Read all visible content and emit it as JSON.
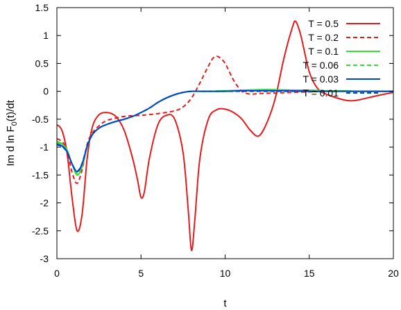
{
  "chart_data": {
    "type": "line",
    "xlabel": "t",
    "ylabel": "Im d ln F",
    "ylabel_sub": "0",
    "ylabel_tail": "(t)/dt",
    "xlim": [
      0,
      20
    ],
    "ylim": [
      -3,
      1.5
    ],
    "xticks": [
      0,
      5,
      10,
      15,
      20
    ],
    "yticks": [
      -3,
      -2.5,
      -2,
      -1.5,
      -1,
      -0.5,
      0,
      0.5,
      1,
      1.5
    ],
    "grid": false,
    "legend_position": "top-right",
    "series": [
      {
        "name": "T = 0.5",
        "color": "#e41a1c",
        "dash": "solid",
        "x": [
          0,
          0.3,
          0.6,
          0.9,
          1.2,
          1.5,
          1.8,
          2.1,
          2.5,
          3.0,
          3.5,
          4.0,
          4.5,
          4.8,
          5.0,
          5.2,
          5.5,
          6.0,
          6.5,
          7.0,
          7.5,
          7.8,
          8.0,
          8.2,
          8.5,
          9.0,
          9.5,
          10.0,
          10.5,
          11.0,
          11.5,
          12.0,
          12.5,
          13.0,
          13.5,
          14.0,
          14.2,
          14.5,
          15.0,
          15.5,
          16.0,
          17.0,
          17.5,
          18.0,
          19.0,
          20.0
        ],
        "y": [
          -0.6,
          -0.7,
          -1.1,
          -1.9,
          -2.5,
          -2.2,
          -1.2,
          -0.65,
          -0.42,
          -0.38,
          -0.45,
          -0.7,
          -1.2,
          -1.6,
          -1.9,
          -1.8,
          -1.2,
          -0.6,
          -0.43,
          -0.5,
          -1.1,
          -2.1,
          -2.85,
          -2.3,
          -1.2,
          -0.5,
          -0.33,
          -0.32,
          -0.38,
          -0.5,
          -0.7,
          -0.8,
          -0.55,
          -0.1,
          0.6,
          1.15,
          1.25,
          1.0,
          0.35,
          0.05,
          -0.05,
          -0.15,
          -0.17,
          -0.15,
          -0.08,
          -0.02
        ]
      },
      {
        "name": "T = 0.2",
        "color": "#e41a1c",
        "dash": "dashed",
        "x": [
          0,
          0.3,
          0.6,
          0.9,
          1.2,
          1.5,
          1.8,
          2.1,
          2.5,
          3.0,
          4.0,
          5.0,
          6.0,
          7.0,
          7.5,
          8.0,
          8.5,
          9.0,
          9.3,
          9.6,
          10.0,
          10.5,
          11.0,
          11.5,
          12.0,
          13.0,
          14.0,
          15.0,
          16.0,
          17.0,
          18.0,
          20.0
        ],
        "y": [
          -0.85,
          -0.9,
          -1.05,
          -1.45,
          -1.65,
          -1.4,
          -0.95,
          -0.75,
          -0.62,
          -0.52,
          -0.45,
          -0.43,
          -0.4,
          -0.35,
          -0.28,
          -0.12,
          0.15,
          0.45,
          0.6,
          0.62,
          0.5,
          0.2,
          0.0,
          -0.05,
          -0.04,
          -0.03,
          -0.02,
          -0.01,
          0.0,
          0.0,
          0.0,
          0.0
        ]
      },
      {
        "name": "T = 0.1",
        "color": "#33dd33",
        "dash": "solid",
        "x": [
          0,
          0.3,
          0.6,
          0.9,
          1.2,
          1.5,
          1.8,
          2.1,
          2.5,
          3.0,
          3.5,
          4.0,
          4.5,
          5.0,
          5.5,
          6.0,
          6.5,
          7.0,
          7.5,
          8.0,
          9.0,
          10.0,
          11.0,
          12.0,
          13.0,
          14.0,
          15.0,
          16.0,
          17.0,
          18.0,
          19.0,
          20.0
        ],
        "y": [
          -0.9,
          -0.94,
          -1.05,
          -1.3,
          -1.5,
          -1.35,
          -1.0,
          -0.78,
          -0.66,
          -0.59,
          -0.54,
          -0.5,
          -0.45,
          -0.38,
          -0.3,
          -0.2,
          -0.12,
          -0.06,
          -0.02,
          0.0,
          0.0,
          0.01,
          0.02,
          0.03,
          0.03,
          0.02,
          0.02,
          0.01,
          0.01,
          0.0,
          0.0,
          0.0
        ]
      },
      {
        "name": "T = 0.06",
        "color": "#33dd33",
        "dash": "dashed",
        "x": [
          0,
          0.3,
          0.6,
          0.9,
          1.2,
          1.5,
          1.8,
          2.1,
          2.5,
          3.0,
          3.5,
          4.0,
          4.5,
          5.0,
          5.5,
          6.0,
          6.5,
          7.0,
          7.5,
          8.0,
          9.0,
          10.0,
          11.0,
          12.0,
          13.0,
          14.0,
          15.0,
          16.0,
          17.0,
          18.0,
          19.0,
          20.0
        ],
        "y": [
          -0.93,
          -0.96,
          -1.06,
          -1.3,
          -1.47,
          -1.32,
          -0.99,
          -0.78,
          -0.66,
          -0.59,
          -0.54,
          -0.5,
          -0.45,
          -0.38,
          -0.3,
          -0.2,
          -0.12,
          -0.06,
          -0.02,
          0.0,
          0.0,
          0.01,
          0.01,
          0.02,
          0.02,
          0.01,
          0.01,
          0.0,
          0.0,
          0.0,
          0.0,
          0.0
        ]
      },
      {
        "name": "T = 0.03",
        "color": "#0044cc",
        "dash": "solid",
        "x": [
          0,
          0.3,
          0.6,
          0.9,
          1.2,
          1.5,
          1.8,
          2.1,
          2.5,
          3.0,
          3.5,
          4.0,
          4.5,
          5.0,
          5.5,
          6.0,
          6.5,
          7.0,
          7.5,
          8.0,
          9.0,
          10.0,
          11.0,
          12.0,
          13.0,
          14.0,
          15.0,
          16.0,
          17.0,
          18.0,
          19.0,
          20.0
        ],
        "y": [
          -0.95,
          -0.98,
          -1.08,
          -1.3,
          -1.44,
          -1.3,
          -0.98,
          -0.78,
          -0.66,
          -0.59,
          -0.54,
          -0.5,
          -0.45,
          -0.38,
          -0.3,
          -0.2,
          -0.12,
          -0.06,
          -0.02,
          0.0,
          0.0,
          0.0,
          0.01,
          0.01,
          0.01,
          0.01,
          0.0,
          0.0,
          0.0,
          0.0,
          0.0,
          0.0
        ]
      },
      {
        "name": "T = 0.01",
        "color": "#0044cc",
        "dash": "dashed",
        "x": [
          0,
          0.3,
          0.6,
          0.9,
          1.2,
          1.5,
          1.8,
          2.1,
          2.5,
          3.0,
          3.5,
          4.0,
          4.5,
          5.0,
          5.5,
          6.0,
          6.5,
          7.0,
          7.5,
          8.0,
          9.0,
          10.0,
          11.0,
          12.0,
          13.0,
          14.0,
          15.0,
          16.0,
          17.0,
          18.0,
          19.0,
          20.0
        ],
        "y": [
          -0.96,
          -0.99,
          -1.09,
          -1.3,
          -1.43,
          -1.29,
          -0.98,
          -0.78,
          -0.66,
          -0.59,
          -0.54,
          -0.5,
          -0.45,
          -0.38,
          -0.3,
          -0.2,
          -0.12,
          -0.06,
          -0.02,
          0.0,
          0.0,
          0.0,
          0.0,
          0.0,
          0.0,
          0.0,
          0.0,
          0.0,
          0.0,
          0.0,
          0.0,
          0.0
        ]
      }
    ]
  }
}
